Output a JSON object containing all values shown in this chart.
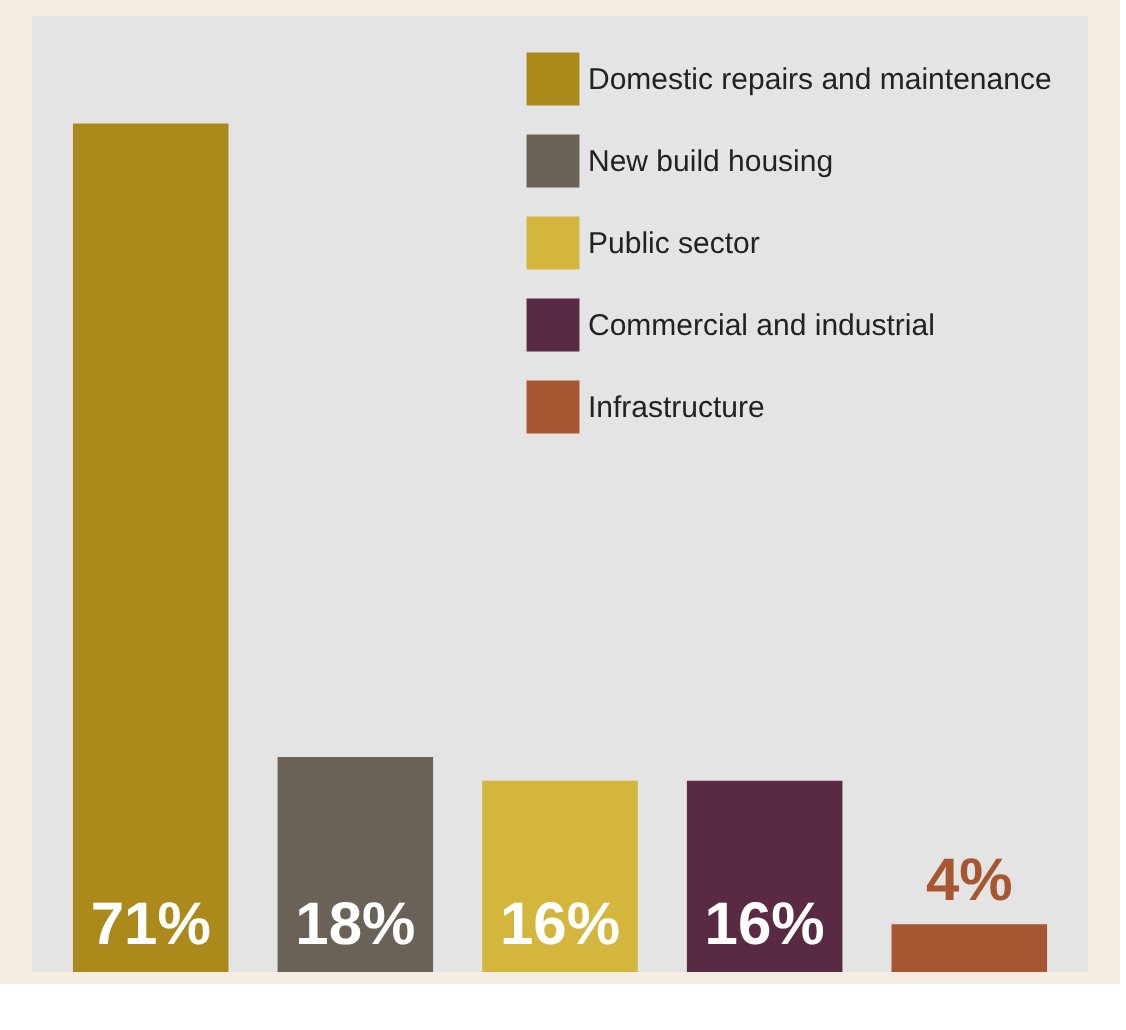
{
  "chart_data": {
    "type": "bar",
    "categories": [
      null,
      null,
      null,
      null,
      null
    ],
    "series": [
      {
        "name": "Domestic repairs and maintenance",
        "color": "#ab8a1b",
        "values": [
          71,
          null,
          null,
          null,
          null
        ],
        "value_labels": [
          "71%",
          null,
          null,
          null,
          null
        ]
      },
      {
        "name": "New build housing",
        "color": "#6a6157",
        "values": [
          null,
          18,
          null,
          null,
          null
        ],
        "value_labels": [
          null,
          "18%",
          null,
          null,
          null
        ]
      },
      {
        "name": "Public sector",
        "color": "#d3b63b",
        "values": [
          null,
          null,
          16,
          null,
          null
        ],
        "value_labels": [
          null,
          null,
          "16%",
          null,
          null
        ]
      },
      {
        "name": "Commercial and industrial",
        "color": "#5a2944",
        "values": [
          null,
          null,
          null,
          16,
          null
        ],
        "value_labels": [
          null,
          null,
          null,
          "16%",
          null
        ]
      },
      {
        "name": "Infrastructure",
        "color": "#a65630",
        "values": [
          null,
          null,
          null,
          null,
          4
        ],
        "value_labels": [
          null,
          null,
          null,
          null,
          "4%"
        ]
      }
    ],
    "stacked": true,
    "legend": "top right"
  }
}
